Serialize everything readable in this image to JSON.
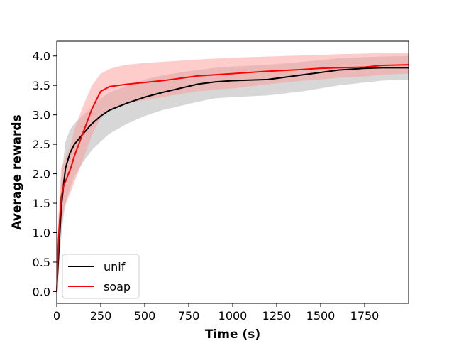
{
  "chart_data": {
    "type": "line",
    "title": "",
    "xlabel": "Time (s)",
    "ylabel": "Average rewards",
    "xlim": [
      0,
      2000
    ],
    "ylim": [
      -0.2,
      4.25
    ],
    "xticks": [
      0,
      250,
      500,
      750,
      1000,
      1250,
      1500,
      1750
    ],
    "xtick_labels": [
      "0",
      "250",
      "500",
      "750",
      "1000",
      "1250",
      "1500",
      "1750"
    ],
    "yticks": [
      0.0,
      0.5,
      1.0,
      1.5,
      2.0,
      2.5,
      3.0,
      3.5,
      4.0
    ],
    "ytick_labels": [
      "0.0",
      "0.5",
      "1.0",
      "1.5",
      "2.0",
      "2.5",
      "3.0",
      "3.5",
      "4.0"
    ],
    "grid": false,
    "legend_position": "lower-left",
    "series": [
      {
        "name": "unif",
        "color": "#000000",
        "band_color": "#b0b0b0",
        "x": [
          0,
          10,
          25,
          40,
          50,
          75,
          100,
          150,
          200,
          250,
          300,
          400,
          500,
          600,
          700,
          800,
          900,
          1000,
          1200,
          1400,
          1500,
          1600,
          1750,
          1850,
          2000
        ],
        "y": [
          0.0,
          0.6,
          1.4,
          1.85,
          2.1,
          2.35,
          2.5,
          2.68,
          2.85,
          2.98,
          3.08,
          3.2,
          3.3,
          3.38,
          3.45,
          3.52,
          3.56,
          3.58,
          3.6,
          3.68,
          3.72,
          3.76,
          3.79,
          3.8,
          3.8
        ],
        "lower": [
          0.0,
          0.3,
          0.9,
          1.3,
          1.5,
          1.75,
          1.95,
          2.2,
          2.4,
          2.55,
          2.68,
          2.85,
          2.98,
          3.08,
          3.15,
          3.22,
          3.28,
          3.3,
          3.33,
          3.4,
          3.45,
          3.5,
          3.55,
          3.58,
          3.6
        ],
        "upper": [
          0.0,
          0.9,
          1.9,
          2.3,
          2.55,
          2.75,
          2.85,
          3.0,
          3.12,
          3.28,
          3.38,
          3.5,
          3.6,
          3.67,
          3.72,
          3.76,
          3.8,
          3.82,
          3.85,
          3.9,
          3.93,
          3.96,
          3.98,
          3.99,
          4.0
        ]
      },
      {
        "name": "soap",
        "color": "#ff0000",
        "band_color": "#ff9a9a",
        "x": [
          0,
          10,
          25,
          40,
          60,
          80,
          100,
          150,
          200,
          250,
          300,
          350,
          400,
          500,
          600,
          700,
          800,
          1000,
          1200,
          1400,
          1500,
          1600,
          1750,
          1850,
          2000
        ],
        "y": [
          0.0,
          0.9,
          1.6,
          1.8,
          1.95,
          2.1,
          2.3,
          2.7,
          3.1,
          3.4,
          3.48,
          3.5,
          3.52,
          3.55,
          3.58,
          3.62,
          3.66,
          3.7,
          3.74,
          3.77,
          3.79,
          3.8,
          3.81,
          3.84,
          3.85
        ],
        "lower": [
          0.0,
          0.5,
          1.1,
          1.4,
          1.55,
          1.7,
          1.85,
          2.25,
          2.65,
          2.95,
          3.1,
          3.15,
          3.2,
          3.25,
          3.3,
          3.35,
          3.4,
          3.45,
          3.52,
          3.58,
          3.6,
          3.63,
          3.65,
          3.68,
          3.7
        ],
        "upper": [
          0.0,
          1.3,
          2.1,
          2.2,
          2.35,
          2.5,
          2.75,
          3.15,
          3.5,
          3.7,
          3.78,
          3.82,
          3.85,
          3.88,
          3.9,
          3.92,
          3.94,
          3.97,
          3.99,
          4.01,
          4.02,
          4.03,
          4.04,
          4.05,
          4.05
        ]
      }
    ]
  }
}
